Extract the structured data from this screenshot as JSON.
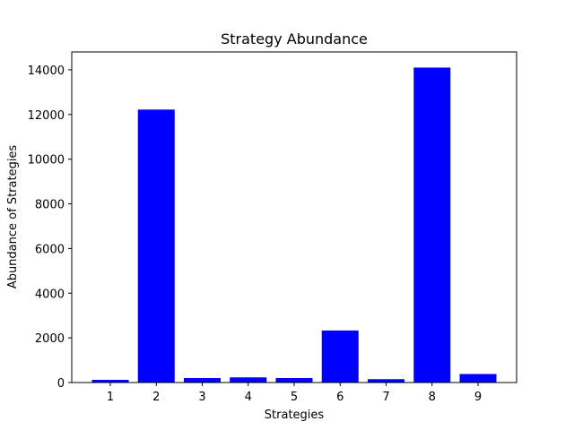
{
  "chart_data": {
    "type": "bar",
    "title": "Strategy Abundance",
    "xlabel": "Strategies",
    "ylabel": "Abundance of Strategies",
    "categories": [
      "1",
      "2",
      "3",
      "4",
      "5",
      "6",
      "7",
      "8",
      "9"
    ],
    "values": [
      120,
      12220,
      200,
      230,
      200,
      2330,
      150,
      14100,
      380
    ],
    "ylim": [
      0,
      14800
    ],
    "yticks": [
      0,
      2000,
      4000,
      6000,
      8000,
      10000,
      12000,
      14000
    ],
    "ytick_labels": [
      "0",
      "2000",
      "4000",
      "6000",
      "8000",
      "10000",
      "12000",
      "14000"
    ],
    "bar_color": "#0000ff",
    "grid": false,
    "legend": "none"
  }
}
